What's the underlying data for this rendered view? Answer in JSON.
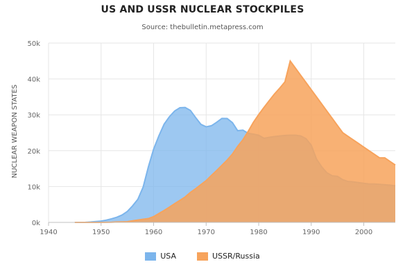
{
  "chart_data": {
    "type": "area",
    "title": "US AND USSR NUCLEAR STOCKPILES",
    "subtitle": "Source: thebulletin.metapress.com",
    "xlabel": "",
    "ylabel": "NUCLEAR WEAPON STATES",
    "xlim": [
      1940,
      2006
    ],
    "ylim": [
      0,
      50000
    ],
    "x_ticks": [
      "1940",
      "1950",
      "1960",
      "1970",
      "1980",
      "1990",
      "2000"
    ],
    "y_ticks": [
      "0k",
      "10k",
      "20k",
      "30k",
      "40k",
      "50k"
    ],
    "grid": true,
    "legend_position": "bottom",
    "series": [
      {
        "name": "USA",
        "color": "#7cb5ec",
        "x": [
          1945,
          1946,
          1947,
          1948,
          1949,
          1950,
          1951,
          1952,
          1953,
          1954,
          1955,
          1956,
          1957,
          1958,
          1959,
          1960,
          1961,
          1962,
          1963,
          1964,
          1965,
          1966,
          1967,
          1968,
          1969,
          1970,
          1971,
          1972,
          1973,
          1974,
          1975,
          1976,
          1977,
          1978,
          1979,
          1980,
          1981,
          1982,
          1983,
          1984,
          1985,
          1986,
          1987,
          1988,
          1989,
          1990,
          1991,
          1992,
          1993,
          1994,
          1995,
          1996,
          1997,
          1998,
          1999,
          2000,
          2001,
          2002,
          2003,
          2004,
          2005,
          2006
        ],
        "values": [
          6,
          11,
          32,
          110,
          235,
          369,
          640,
          1005,
          1436,
          2063,
          3057,
          4618,
          6444,
          9822,
          15468,
          20434,
          24126,
          27387,
          29459,
          31056,
          31982,
          32040,
          31233,
          29224,
          27342,
          26662,
          26956,
          27912,
          28999,
          28965,
          27826,
          25579,
          25722,
          24826,
          24605,
          24304,
          23464,
          23708,
          23928,
          24104,
          24244,
          24330,
          24324,
          24105,
          23344,
          21528,
          17662,
          15468,
          13808,
          12993,
          12841,
          11900,
          11400,
          11300,
          11100,
          10900,
          10700,
          10700,
          10600,
          10500,
          10400,
          10200
        ]
      },
      {
        "name": "USSR/Russia",
        "color": "#f7a35c",
        "x": [
          1945,
          1946,
          1947,
          1948,
          1949,
          1950,
          1951,
          1952,
          1953,
          1954,
          1955,
          1956,
          1957,
          1958,
          1959,
          1960,
          1961,
          1962,
          1963,
          1964,
          1965,
          1966,
          1967,
          1968,
          1969,
          1970,
          1971,
          1972,
          1973,
          1974,
          1975,
          1976,
          1977,
          1978,
          1979,
          1980,
          1981,
          1982,
          1983,
          1984,
          1985,
          1986,
          1987,
          1988,
          1989,
          1990,
          1991,
          1992,
          1993,
          1994,
          1995,
          1996,
          1997,
          1998,
          1999,
          2000,
          2001,
          2002,
          2003,
          2004,
          2005,
          2006
        ],
        "values": [
          0,
          0,
          0,
          0,
          1,
          5,
          25,
          50,
          120,
          150,
          200,
          426,
          660,
          869,
          1060,
          1605,
          2471,
          3322,
          4238,
          5221,
          6129,
          7089,
          8339,
          9399,
          10538,
          11643,
          13092,
          14478,
          15915,
          17385,
          19055,
          21205,
          23044,
          25393,
          27935,
          30062,
          32049,
          33952,
          35804,
          37431,
          39197,
          45000,
          43000,
          41000,
          39000,
          37000,
          35000,
          33000,
          31000,
          29000,
          27000,
          25000,
          24000,
          23000,
          22000,
          21000,
          20000,
          19000,
          18000,
          18000,
          17000,
          16000
        ]
      }
    ]
  }
}
